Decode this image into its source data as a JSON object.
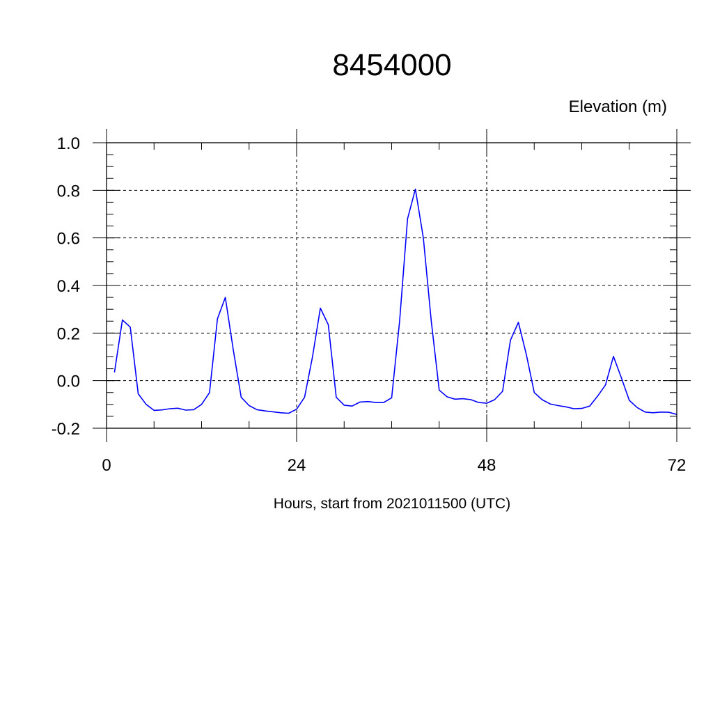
{
  "chart_data": {
    "type": "line",
    "title": "8454000",
    "ylabel": "Elevation (m)",
    "xlabel": "Hours, start from 2021011500 (UTC)",
    "xlim": [
      0,
      72
    ],
    "ylim": [
      -0.2,
      1.0
    ],
    "x_major_ticks": [
      0,
      24,
      48,
      72
    ],
    "x_tick_labels": [
      "0",
      "24",
      "48",
      "72"
    ],
    "x_minor_step": 6,
    "y_major_ticks": [
      -0.2,
      0.0,
      0.2,
      0.4,
      0.6,
      0.8,
      1.0
    ],
    "y_tick_labels": [
      "-0.2",
      "0.0",
      "0.2",
      "0.4",
      "0.6",
      "0.8",
      "1.0"
    ],
    "y_minor_step": 0.05,
    "grid": true,
    "series": [
      {
        "color": "#0000ff",
        "x": [
          1,
          2,
          3,
          4,
          5,
          6,
          7,
          8,
          9,
          10,
          11,
          12,
          13,
          14,
          15,
          16,
          17,
          18,
          19,
          20,
          21,
          22,
          23,
          24,
          25,
          26,
          27,
          28,
          29,
          30,
          31,
          32,
          33,
          34,
          35,
          36,
          37,
          38,
          39,
          40,
          41,
          42,
          43,
          44,
          45,
          46,
          47,
          48,
          49,
          50,
          51,
          52,
          53,
          54,
          55,
          56,
          57,
          58,
          59,
          60,
          61,
          62,
          63,
          64,
          65,
          66,
          67,
          68,
          69,
          70,
          71,
          72
        ],
        "y": [
          0.035,
          0.255,
          0.225,
          -0.055,
          -0.1,
          -0.125,
          -0.123,
          -0.118,
          -0.116,
          -0.124,
          -0.122,
          -0.1,
          -0.05,
          0.26,
          0.35,
          0.13,
          -0.07,
          -0.105,
          -0.122,
          -0.127,
          -0.131,
          -0.135,
          -0.137,
          -0.12,
          -0.07,
          0.1,
          0.305,
          0.235,
          -0.07,
          -0.103,
          -0.107,
          -0.09,
          -0.088,
          -0.092,
          -0.092,
          -0.072,
          0.25,
          0.68,
          0.805,
          0.6,
          0.25,
          -0.04,
          -0.068,
          -0.078,
          -0.076,
          -0.08,
          -0.092,
          -0.095,
          -0.08,
          -0.045,
          0.17,
          0.245,
          0.11,
          -0.05,
          -0.08,
          -0.098,
          -0.105,
          -0.11,
          -0.118,
          -0.117,
          -0.107,
          -0.065,
          -0.018,
          0.102,
          0.012,
          -0.083,
          -0.113,
          -0.132,
          -0.135,
          -0.132,
          -0.133,
          -0.142
        ]
      }
    ]
  }
}
